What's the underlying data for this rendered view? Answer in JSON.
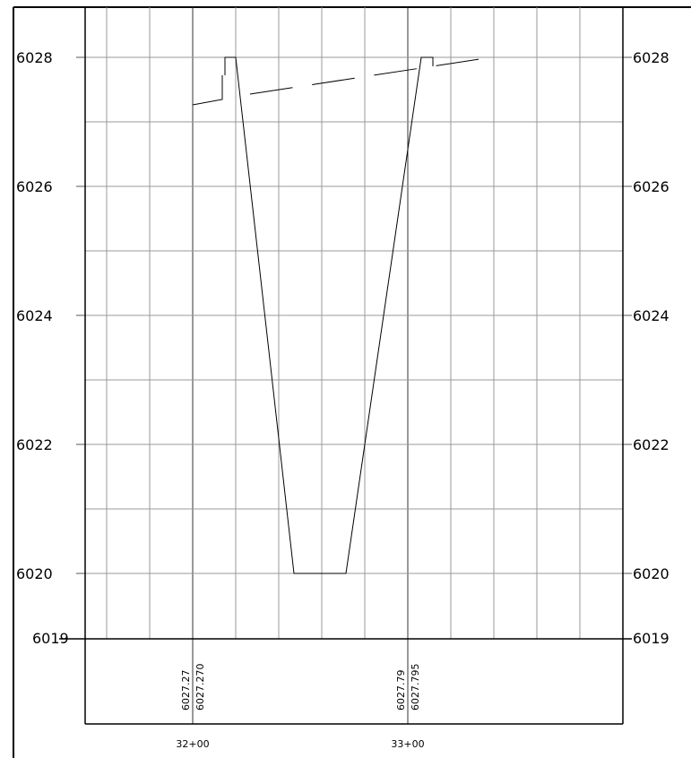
{
  "y_axis": {
    "left_ticks": [
      {
        "value": 6028,
        "label": "6028"
      },
      {
        "value": 6026,
        "label": "6026"
      },
      {
        "value": 6024,
        "label": "6024"
      },
      {
        "value": 6022,
        "label": "6022"
      },
      {
        "value": 6020,
        "label": "6020"
      },
      {
        "value": 6019,
        "label": "6019"
      }
    ],
    "right_ticks": [
      {
        "value": 6028,
        "label": "6028"
      },
      {
        "value": 6026,
        "label": "6026"
      },
      {
        "value": 6024,
        "label": "6024"
      },
      {
        "value": 6022,
        "label": "6022"
      },
      {
        "value": 6020,
        "label": "6020"
      },
      {
        "value": 6019,
        "label": "6019"
      }
    ]
  },
  "stations": [
    {
      "label": "32+00",
      "readings": [
        "6027.27",
        "6027.270"
      ]
    },
    {
      "label": "33+00",
      "readings": [
        "6027.79",
        "6027.795"
      ]
    }
  ]
}
